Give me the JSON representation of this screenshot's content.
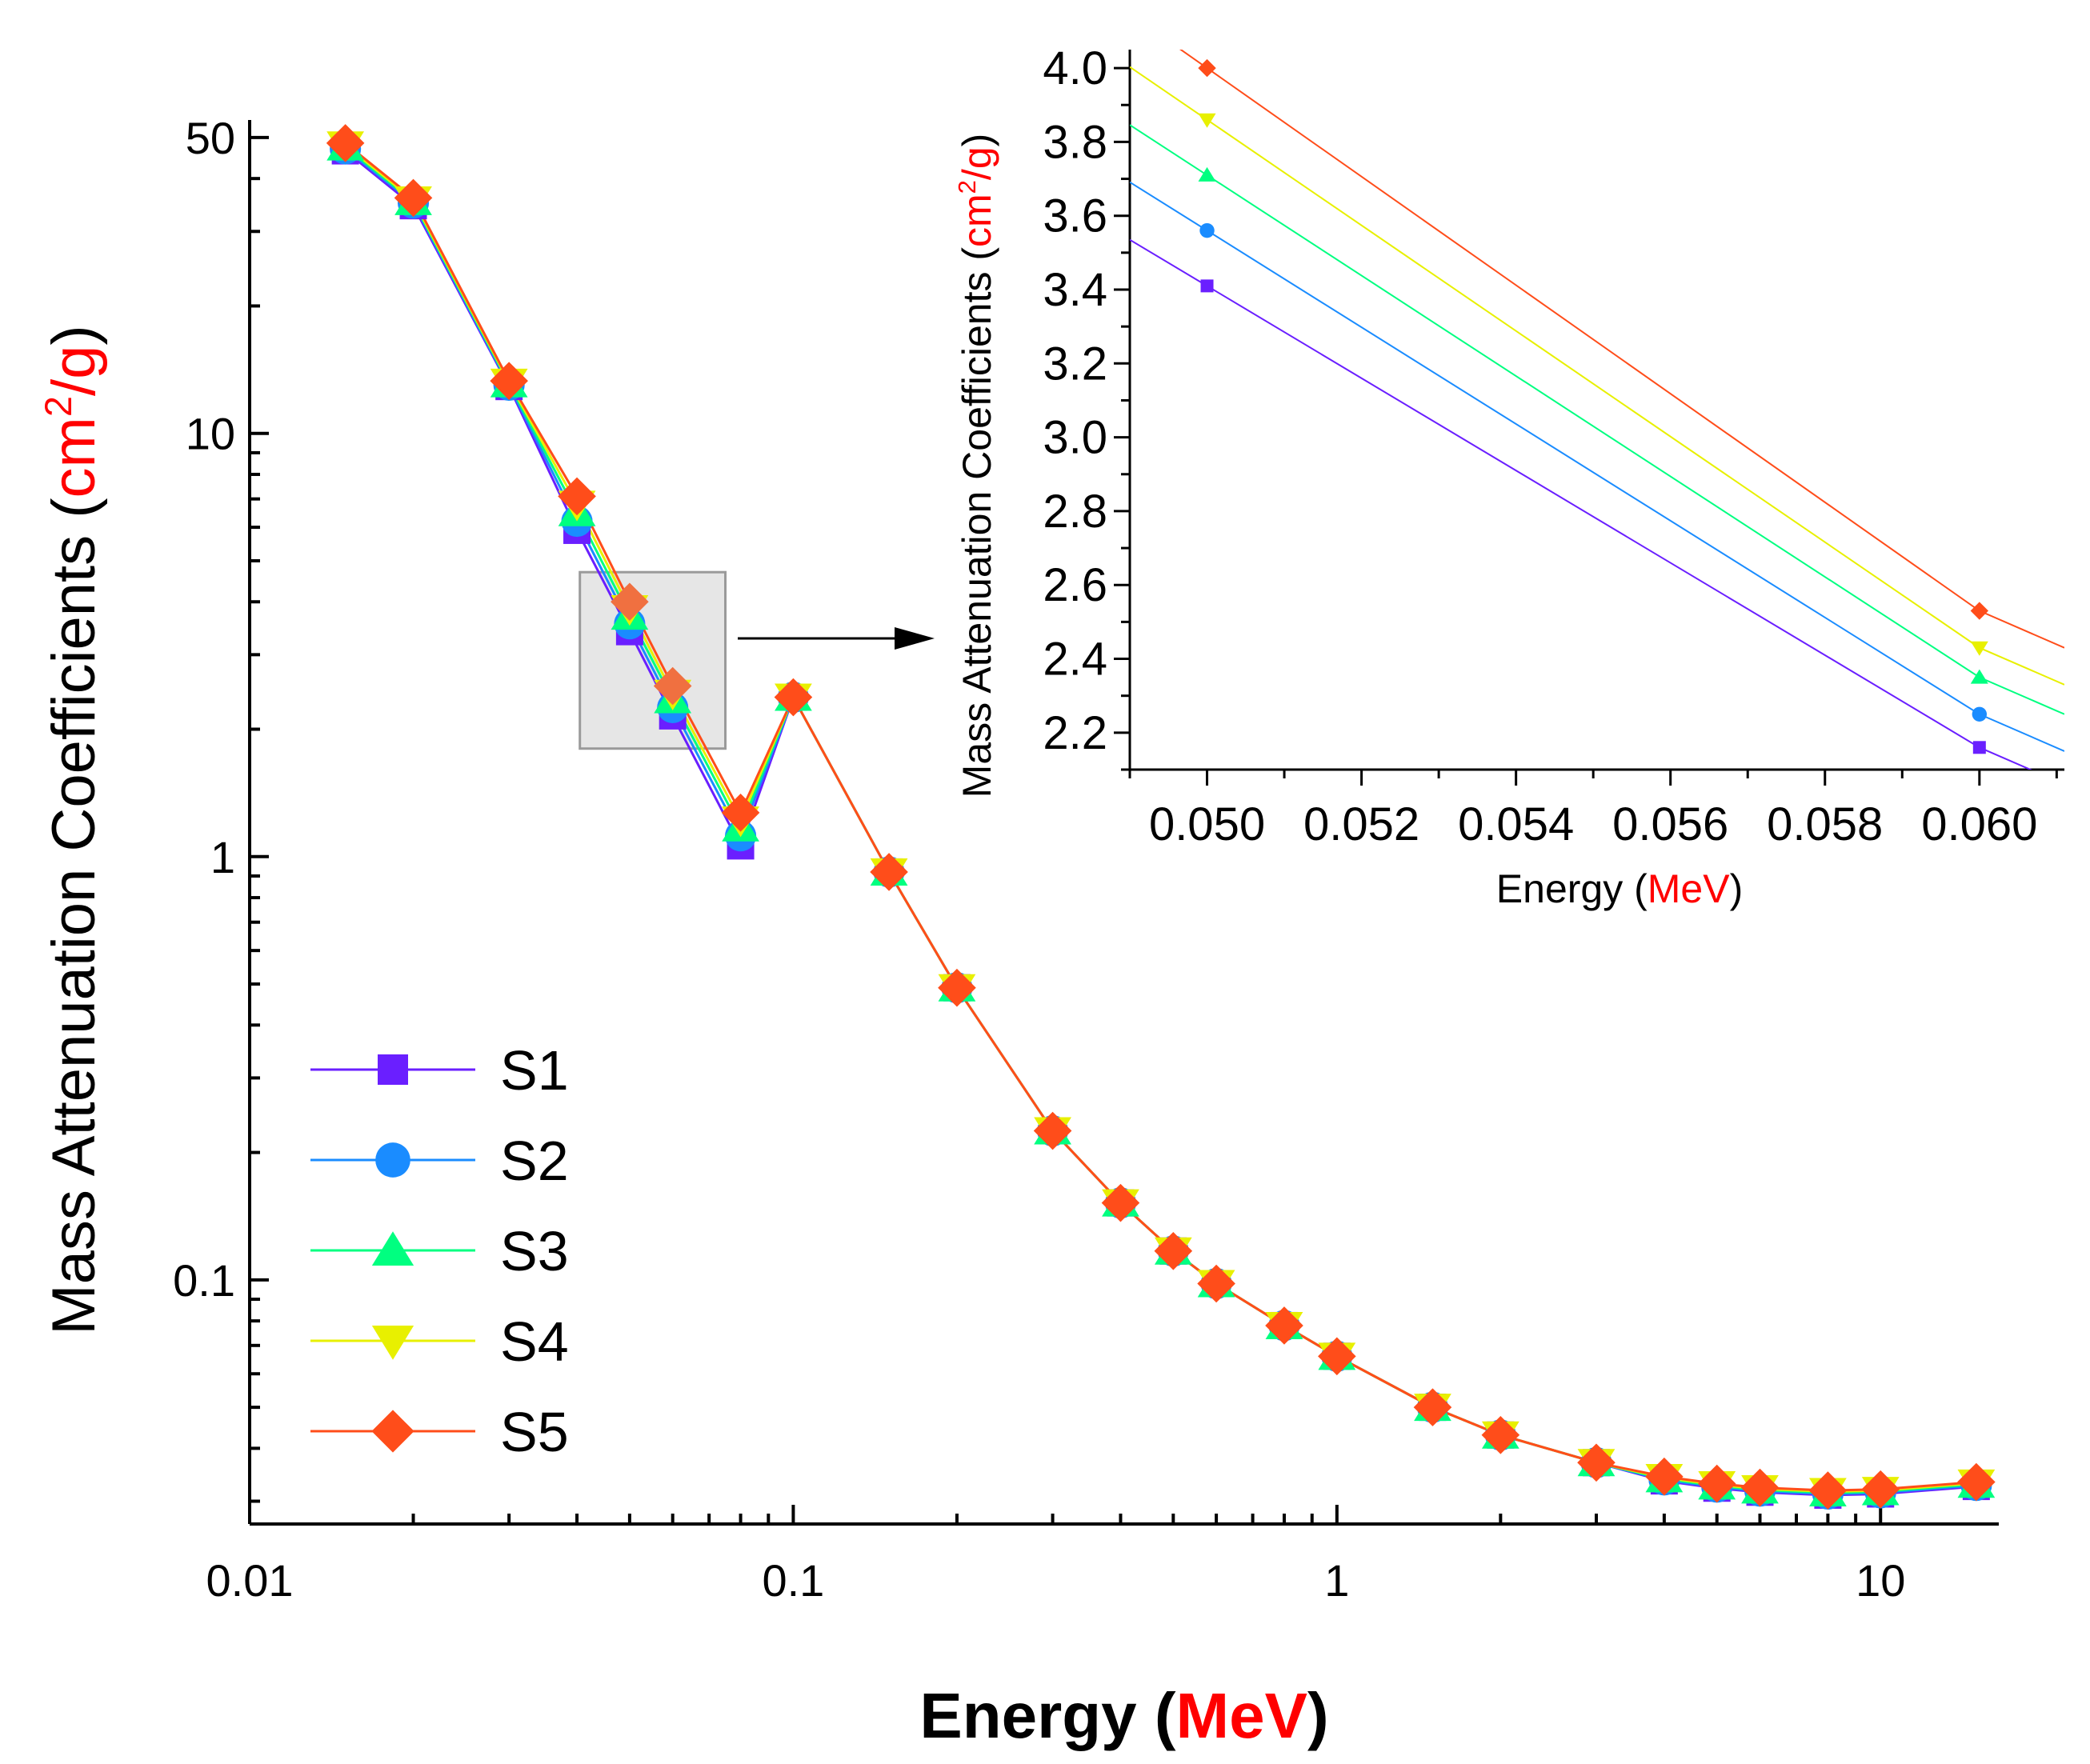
{
  "chart_data": [
    {
      "type": "line",
      "name": "main-chart",
      "xscale": "log",
      "yscale": "log",
      "xlim": [
        0.01,
        16.5
      ],
      "ylim": [
        0.0265,
        55
      ],
      "x_ticks": [
        {
          "value": 0.01,
          "label": "0.01"
        },
        {
          "value": 0.1,
          "label": "0.1"
        },
        {
          "value": 1,
          "label": "1"
        },
        {
          "value": 10,
          "label": "10"
        }
      ],
      "y_ticks": [
        {
          "value": 0.1,
          "label": "0.1"
        },
        {
          "value": 1,
          "label": "1"
        },
        {
          "value": 10,
          "label": "10"
        },
        {
          "value": 50,
          "label": "50"
        }
      ],
      "xlabel": {
        "main": "Energy (",
        "unit": "MeV",
        "close": ")"
      },
      "ylabel": {
        "main": "Mass Attenuation Coefficients (",
        "unit": "cm",
        "sup": "2",
        "unit2": "/g)"
      },
      "x": [
        0.015,
        0.02,
        0.03,
        0.04,
        0.05,
        0.06,
        0.08,
        0.1,
        0.15,
        0.2,
        0.3,
        0.4,
        0.5,
        0.6,
        0.8,
        1,
        1.5,
        2,
        3,
        4,
        5,
        6,
        8,
        10,
        15
      ],
      "series": [
        {
          "name": "S1",
          "color": "#6a1fff",
          "marker": "square",
          "values": [
            46.5,
            34.5,
            12.9,
            5.9,
            3.4,
            2.15,
            1.06,
            2.38,
            0.92,
            0.49,
            0.225,
            0.152,
            0.117,
            0.098,
            0.078,
            0.066,
            0.05,
            0.043,
            0.037,
            0.0335,
            0.0322,
            0.0315,
            0.031,
            0.0312,
            0.0325
          ]
        },
        {
          "name": "S2",
          "color": "#1a8cff",
          "marker": "circle",
          "values": [
            47.0,
            35.0,
            13.0,
            6.2,
            3.55,
            2.25,
            1.12,
            2.38,
            0.92,
            0.49,
            0.225,
            0.152,
            0.117,
            0.098,
            0.078,
            0.066,
            0.05,
            0.043,
            0.037,
            0.0337,
            0.0324,
            0.0317,
            0.0312,
            0.0314,
            0.0327
          ]
        },
        {
          "name": "S3",
          "color": "#00ff80",
          "marker": "triangle-up",
          "values": [
            47.5,
            35.3,
            13.1,
            6.5,
            3.7,
            2.35,
            1.17,
            2.38,
            0.92,
            0.49,
            0.225,
            0.152,
            0.117,
            0.098,
            0.078,
            0.066,
            0.05,
            0.043,
            0.037,
            0.0339,
            0.0326,
            0.0319,
            0.0314,
            0.0316,
            0.0329
          ]
        },
        {
          "name": "S4",
          "color": "#e8f000",
          "marker": "triangle-down",
          "values": [
            48.0,
            35.6,
            13.2,
            6.8,
            3.85,
            2.43,
            1.22,
            2.38,
            0.92,
            0.49,
            0.225,
            0.152,
            0.117,
            0.098,
            0.078,
            0.066,
            0.05,
            0.043,
            0.037,
            0.0341,
            0.0328,
            0.0321,
            0.0316,
            0.0318,
            0.0331
          ]
        },
        {
          "name": "S5",
          "color": "#ff4d1a",
          "marker": "diamond",
          "values": [
            48.5,
            36.0,
            13.3,
            7.1,
            4.0,
            2.53,
            1.27,
            2.38,
            0.92,
            0.49,
            0.225,
            0.152,
            0.117,
            0.098,
            0.078,
            0.066,
            0.05,
            0.043,
            0.037,
            0.0343,
            0.033,
            0.0323,
            0.0318,
            0.032,
            0.0333
          ]
        }
      ],
      "highlight_box": {
        "x_range": [
          0.0405,
          0.075
        ],
        "y_range": [
          1.8,
          4.7
        ]
      },
      "legend_position": "bottom-left"
    },
    {
      "type": "line",
      "name": "inset-chart",
      "xscale": "linear",
      "yscale": "linear",
      "xlim": [
        0.049,
        0.0611
      ],
      "ylim": [
        2.1,
        4.05
      ],
      "x_ticks": [
        {
          "value": 0.05,
          "label": "0.050"
        },
        {
          "value": 0.052,
          "label": "0.052"
        },
        {
          "value": 0.054,
          "label": "0.054"
        },
        {
          "value": 0.056,
          "label": "0.056"
        },
        {
          "value": 0.058,
          "label": "0.058"
        },
        {
          "value": 0.06,
          "label": "0.060"
        }
      ],
      "y_ticks": [
        {
          "value": 2.2,
          "label": "2.2"
        },
        {
          "value": 2.4,
          "label": "2.4"
        },
        {
          "value": 2.6,
          "label": "2.6"
        },
        {
          "value": 2.8,
          "label": "2.8"
        },
        {
          "value": 3.0,
          "label": "3.0"
        },
        {
          "value": 3.2,
          "label": "3.2"
        },
        {
          "value": 3.4,
          "label": "3.4"
        },
        {
          "value": 3.6,
          "label": "3.6"
        },
        {
          "value": 3.8,
          "label": "3.8"
        },
        {
          "value": 4.0,
          "label": "4.0"
        }
      ],
      "xlabel": {
        "main": "Energy (",
        "unit": "MeV",
        "close": ")"
      },
      "ylabel": {
        "main": "Mass Attenuation Coefficients (",
        "unit": "cm",
        "sup": "2",
        "unit2": "/g)"
      },
      "x": [
        0.05,
        0.06
      ],
      "series": [
        {
          "name": "S1",
          "color": "#6a1fff",
          "marker": "square",
          "values": [
            3.41,
            2.16
          ]
        },
        {
          "name": "S2",
          "color": "#1a8cff",
          "marker": "circle",
          "values": [
            3.56,
            2.25
          ]
        },
        {
          "name": "S3",
          "color": "#00ff80",
          "marker": "triangle-up",
          "values": [
            3.71,
            2.35
          ]
        },
        {
          "name": "S4",
          "color": "#e8f000",
          "marker": "triangle-down",
          "values": [
            3.86,
            2.43
          ]
        },
        {
          "name": "S5",
          "color": "#ff4d1a",
          "marker": "diamond",
          "values": [
            4.0,
            2.53
          ]
        }
      ]
    }
  ]
}
